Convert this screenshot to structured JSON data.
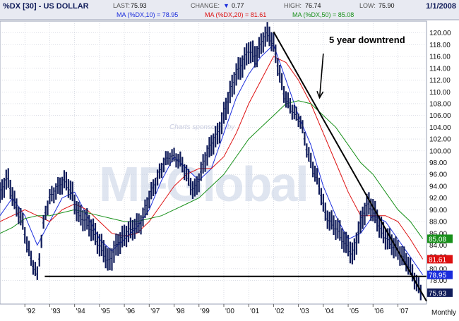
{
  "header": {
    "symbol": "%DX [30] - US DOLLAR",
    "last_label": "LAST:",
    "last_value": "75.93",
    "change_label": "CHANGE:",
    "change_arrow": "▼",
    "change_value": "0.77",
    "high_label": "HIGH:",
    "high_value": "76.74",
    "low_label": "LOW:",
    "low_value": "75.90",
    "date": "1/1/2008",
    "ma10": "MA (%DX,10) = 78.95",
    "ma20": "MA (%DX,20) = 81.61",
    "ma50": "MA (%DX,50) = 85.08"
  },
  "watermark": {
    "top": "Charts sponsored by",
    "main": "MFGlobal"
  },
  "annotations": {
    "downtrend": "5 year downtrend"
  },
  "colors": {
    "price": "#101c5a",
    "ma10": "#1a2cdc",
    "ma20": "#dd1111",
    "ma50": "#18901a",
    "header_bg": "#e8eaf2",
    "grid": "#c6cad6",
    "trendline": "#000000"
  },
  "chart_data": {
    "type": "line",
    "title": "%DX [30] - US DOLLAR",
    "x_axis": {
      "ticks": [
        "'92",
        "'93",
        "'94",
        "'95",
        "'96",
        "'97",
        "'98",
        "'99",
        "'00",
        "'01",
        "'02",
        "'03",
        "'04",
        "'05",
        "'06",
        "'07"
      ],
      "tick_years": [
        1992,
        1993,
        1994,
        1995,
        1996,
        1997,
        1998,
        1999,
        2000,
        2001,
        2002,
        2003,
        2004,
        2005,
        2006,
        2007
      ],
      "range": [
        1991.0,
        2008.15
      ],
      "period_label": "Monthly"
    },
    "y_axis": {
      "range": [
        74,
        122
      ],
      "ticks": [
        78,
        80,
        82,
        84,
        86,
        88,
        90,
        92,
        94,
        96,
        98,
        100,
        102,
        104,
        106,
        108,
        110,
        112,
        114,
        116,
        118,
        120
      ],
      "tick_labels": [
        "78.00",
        "80.00",
        "82.00",
        "84.00",
        "86.00",
        "88.00",
        "90.00",
        "92.00",
        "94.00",
        "96.00",
        "98.00",
        "100.00",
        "102.00",
        "104.00",
        "106.00",
        "108.00",
        "110.00",
        "112.00",
        "114.00",
        "116.00",
        "118.00",
        "120.00"
      ],
      "position": "right"
    },
    "grid": true,
    "series": [
      {
        "name": "%DX",
        "style": "bars",
        "x": [
          1991.0,
          1991.3,
          1991.6,
          1991.9,
          1992.1,
          1992.3,
          1992.5,
          1992.7,
          1992.8,
          1993.0,
          1993.3,
          1993.6,
          1993.9,
          1994.0,
          1994.2,
          1994.5,
          1994.8,
          1995.0,
          1995.2,
          1995.35,
          1995.5,
          1995.7,
          1995.9,
          1996.1,
          1996.4,
          1996.7,
          1997.0,
          1997.2,
          1997.4,
          1997.6,
          1997.8,
          1998.0,
          1998.3,
          1998.6,
          1998.8,
          1999.0,
          1999.2,
          1999.5,
          1999.8,
          2000.0,
          2000.2,
          2000.5,
          2000.8,
          2001.0,
          2001.3,
          2001.6,
          2001.8,
          2002.0,
          2002.2,
          2002.4,
          2002.6,
          2002.9,
          2003.1,
          2003.3,
          2003.5,
          2003.7,
          2003.9,
          2004.1,
          2004.3,
          2004.5,
          2004.7,
          2004.9,
          2005.0,
          2005.2,
          2005.4,
          2005.6,
          2005.8,
          2006.0,
          2006.2,
          2006.4,
          2006.6,
          2006.8,
          2007.0,
          2007.2,
          2007.4,
          2007.6,
          2007.8,
          2007.95
        ],
        "y": [
          92.5,
          95.5,
          91,
          88,
          84,
          81,
          78.9,
          86,
          89,
          92,
          93.5,
          95,
          93,
          91,
          89,
          88,
          86,
          84,
          83,
          81,
          82,
          84,
          85,
          86,
          87,
          88,
          92,
          94,
          96,
          98,
          99,
          99,
          98,
          95,
          93,
          95,
          98,
          101,
          103,
          106,
          109,
          113,
          115,
          117,
          116,
          119,
          120,
          118,
          114,
          110,
          108,
          106,
          105,
          101,
          98,
          96,
          93,
          89,
          88,
          87,
          86,
          84,
          84,
          82,
          86,
          89,
          91,
          90,
          88,
          86,
          85,
          84,
          83,
          82,
          81,
          79,
          77,
          76
        ]
      },
      {
        "name": "MA (%DX,10)",
        "x": [
          1991.0,
          1991.5,
          1992.0,
          1992.5,
          1993.0,
          1993.5,
          1994.0,
          1994.5,
          1995.0,
          1995.5,
          1996.0,
          1996.5,
          1997.0,
          1997.5,
          1998.0,
          1998.5,
          1999.0,
          1999.5,
          2000.0,
          2000.5,
          2001.0,
          2001.5,
          2002.0,
          2002.5,
          2003.0,
          2003.5,
          2004.0,
          2004.5,
          2005.0,
          2005.5,
          2006.0,
          2006.5,
          2007.0,
          2007.5,
          2008.0
        ],
        "y": [
          89,
          92,
          89,
          84,
          88,
          92,
          93,
          89,
          85,
          83,
          85,
          87,
          90,
          95,
          99,
          97,
          95,
          97,
          103,
          109,
          113,
          116,
          118,
          112,
          106,
          101,
          94,
          89,
          85,
          86,
          89,
          88,
          85,
          82,
          78.95
        ]
      },
      {
        "name": "MA (%DX,20)",
        "x": [
          1991.0,
          1991.5,
          1992.0,
          1992.5,
          1993.0,
          1993.5,
          1994.0,
          1994.5,
          1995.0,
          1995.5,
          1996.0,
          1996.5,
          1997.0,
          1997.5,
          1998.0,
          1998.5,
          1999.0,
          1999.5,
          2000.0,
          2000.5,
          2001.0,
          2001.5,
          2002.0,
          2002.5,
          2003.0,
          2003.5,
          2004.0,
          2004.5,
          2005.0,
          2005.5,
          2006.0,
          2006.5,
          2007.0,
          2007.5,
          2008.0
        ],
        "y": [
          88,
          89,
          90,
          89,
          88,
          90,
          91,
          90,
          88,
          86,
          85.5,
          86,
          88,
          91,
          94,
          96,
          97,
          97,
          99,
          103,
          108,
          112,
          116,
          115,
          112,
          108,
          103,
          98,
          93,
          89,
          89,
          89,
          88,
          85,
          81.61
        ]
      },
      {
        "name": "MA (%DX,50)",
        "x": [
          1991.0,
          1991.5,
          1992.0,
          1992.5,
          1993.0,
          1993.5,
          1994.0,
          1994.5,
          1995.0,
          1995.5,
          1996.0,
          1996.5,
          1997.0,
          1997.5,
          1998.0,
          1998.5,
          1999.0,
          1999.5,
          2000.0,
          2000.5,
          2001.0,
          2001.5,
          2002.0,
          2002.5,
          2003.0,
          2003.5,
          2004.0,
          2004.5,
          2005.0,
          2005.5,
          2006.0,
          2006.5,
          2007.0,
          2007.5,
          2008.0
        ],
        "y": [
          86,
          87,
          88.5,
          89,
          89,
          89.5,
          90,
          89.5,
          89,
          88.5,
          88,
          88,
          88.5,
          89,
          90,
          91,
          92,
          94,
          96,
          99,
          102,
          104,
          106,
          108,
          108.5,
          108,
          106,
          104,
          101,
          98,
          96,
          93,
          90,
          88,
          85.08
        ]
      }
    ],
    "last_value_labels": [
      {
        "series": "MA (%DX,50)",
        "value": 85.08,
        "text": "85.08"
      },
      {
        "series": "MA (%DX,20)",
        "value": 81.61,
        "text": "81.61"
      },
      {
        "series": "MA (%DX,10)",
        "value": 78.95,
        "text": "78.95"
      },
      {
        "series": "%DX",
        "value": 75.93,
        "text": "75.93"
      }
    ],
    "trendlines": [
      {
        "name": "downtrend-line",
        "from": [
          2002.0,
          120.2
        ],
        "to": [
          2008.15,
          74.5
        ]
      },
      {
        "name": "support-line",
        "from": [
          1992.8,
          78.7
        ],
        "to": [
          2008.15,
          78.7
        ]
      }
    ],
    "annotation_arrow": {
      "from": [
        2004.0,
        116.5
      ],
      "to": [
        2003.85,
        109.0
      ]
    }
  }
}
